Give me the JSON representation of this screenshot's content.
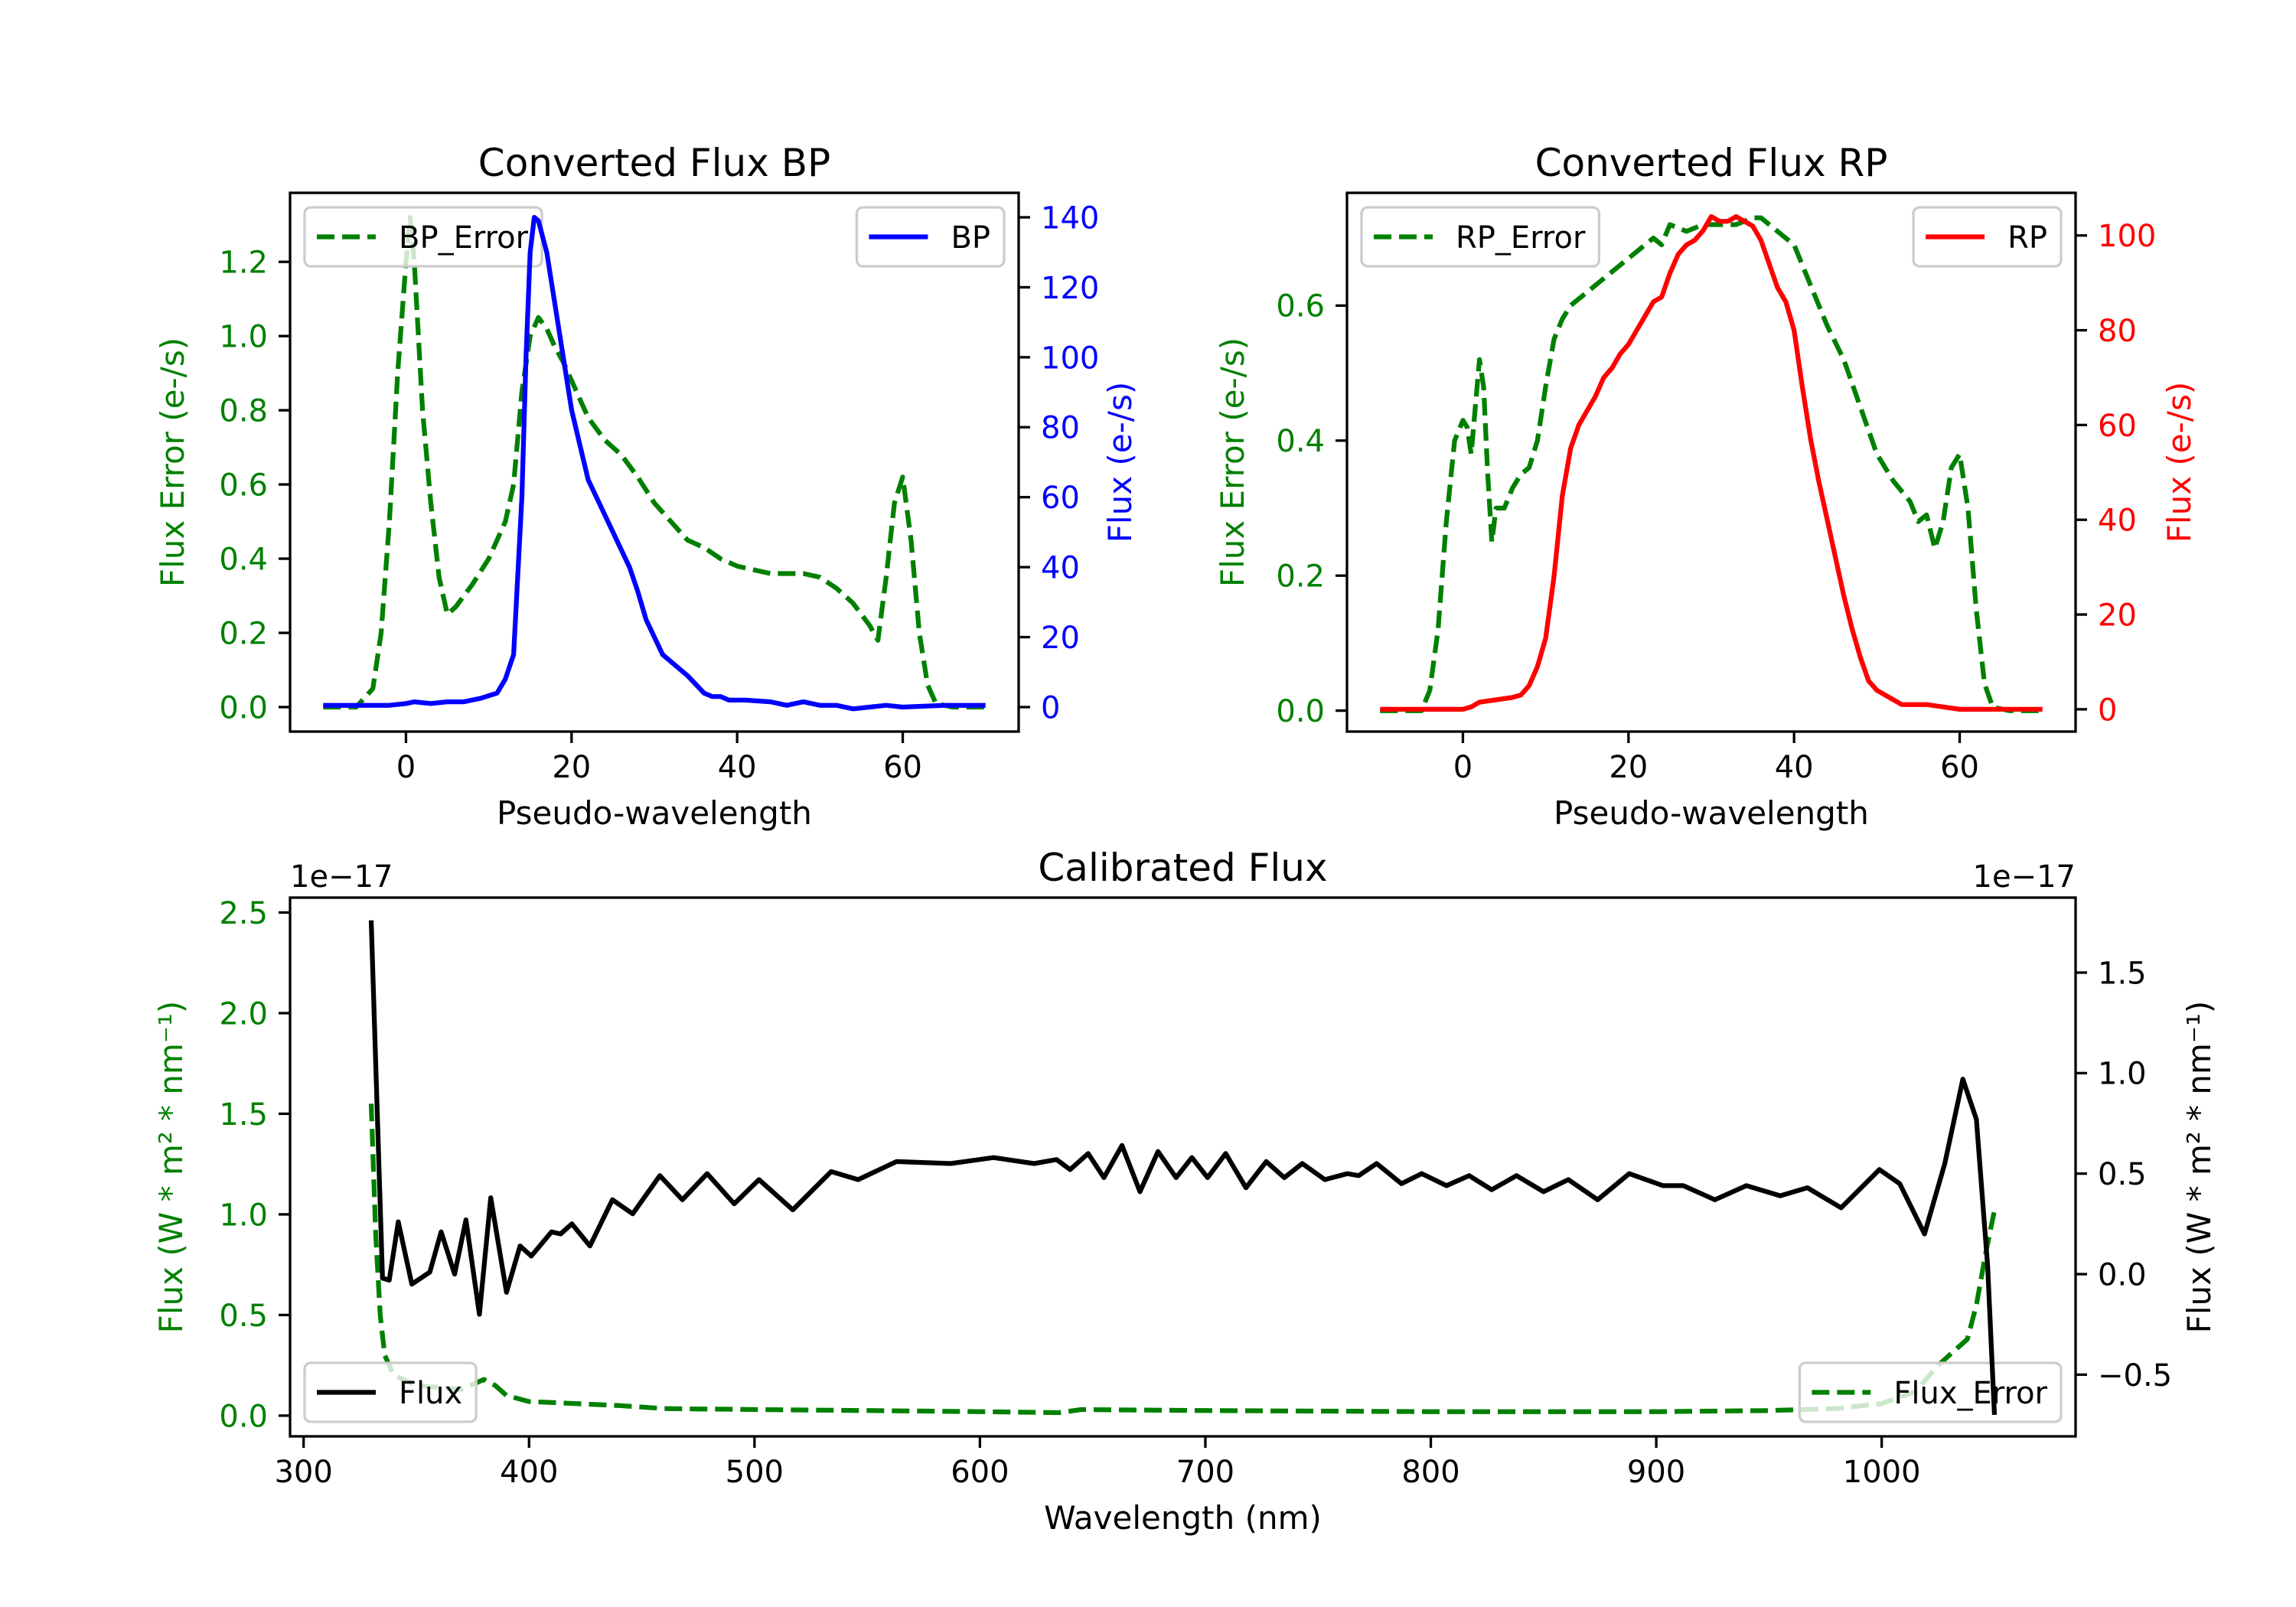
{
  "colors": {
    "error": "#008000",
    "bp": "#0000ff",
    "rp": "#ff0000",
    "flux": "#000000",
    "legend_edge": "#cccccc"
  },
  "chart_data": [
    {
      "type": "line",
      "title": "Converted Flux BP",
      "xlabel": "Pseudo-wavelength",
      "xlim": [
        -14,
        74
      ],
      "xticks": [
        0,
        20,
        40,
        60
      ],
      "y_left": {
        "label": "Flux Error (e-/s)",
        "color": "#008000",
        "lim": [
          -0.066,
          1.386
        ],
        "ticks": [
          0.0,
          0.2,
          0.4,
          0.6,
          0.8,
          1.0,
          1.2
        ],
        "decimals": 1
      },
      "y_right": {
        "label": "Flux (e-/s)",
        "color": "#0000ff",
        "lim": [
          -7,
          147
        ],
        "ticks": [
          0,
          20,
          40,
          60,
          80,
          100,
          120,
          140
        ],
        "decimals": 0
      },
      "series": [
        {
          "name": "BP_Error",
          "axis": "left",
          "color": "#008000",
          "style": "dashed",
          "legend": "upper-left",
          "x": [
            -10,
            -6,
            -4,
            -3,
            -2,
            -1,
            0,
            0.5,
            1,
            2,
            3,
            4,
            5,
            6,
            7,
            8,
            10,
            12,
            13,
            14,
            15,
            16,
            17,
            18,
            19,
            20,
            22,
            24,
            26,
            28,
            30,
            32,
            34,
            36,
            38,
            40,
            44,
            48,
            50,
            52,
            54,
            56,
            57,
            58,
            59,
            60,
            61,
            62,
            63,
            64,
            66,
            70
          ],
          "y": [
            0,
            0,
            0.05,
            0.2,
            0.5,
            0.9,
            1.2,
            1.32,
            1.2,
            0.8,
            0.55,
            0.35,
            0.25,
            0.27,
            0.3,
            0.33,
            0.4,
            0.5,
            0.6,
            0.85,
            1.0,
            1.05,
            1.02,
            0.97,
            0.93,
            0.88,
            0.78,
            0.72,
            0.68,
            0.62,
            0.55,
            0.5,
            0.45,
            0.43,
            0.4,
            0.38,
            0.36,
            0.36,
            0.35,
            0.32,
            0.28,
            0.22,
            0.18,
            0.35,
            0.55,
            0.62,
            0.45,
            0.2,
            0.06,
            0.01,
            0,
            0
          ]
        },
        {
          "name": "BP",
          "axis": "right",
          "color": "#0000ff",
          "style": "solid",
          "legend": "upper-right",
          "x": [
            -10,
            -5,
            -2,
            0,
            1,
            3,
            5,
            7,
            9,
            11,
            12,
            13,
            14,
            14.5,
            15,
            15.5,
            16,
            17,
            18,
            19,
            20,
            21,
            22,
            23,
            24,
            25,
            26,
            27,
            28,
            29,
            30,
            31,
            32,
            34,
            36,
            37,
            38,
            39,
            41,
            44,
            46,
            48,
            50,
            52,
            54,
            56,
            58,
            60,
            65,
            70
          ],
          "y": [
            0.5,
            0.5,
            0.5,
            1,
            1.5,
            1,
            1.5,
            1.5,
            2.5,
            4,
            8,
            15,
            60,
            100,
            130,
            140,
            139,
            130,
            115,
            100,
            85,
            75,
            65,
            60,
            55,
            50,
            45,
            40,
            33,
            25,
            20,
            15,
            13,
            9,
            4,
            3,
            3,
            2,
            2,
            1.5,
            0.5,
            1.5,
            0.5,
            0.5,
            -0.5,
            0,
            0.5,
            0,
            0.5,
            0.5
          ]
        }
      ]
    },
    {
      "type": "line",
      "title": "Converted Flux RP",
      "xlabel": "Pseudo-wavelength",
      "xlim": [
        -14,
        74
      ],
      "xticks": [
        0,
        20,
        40,
        60
      ],
      "y_left": {
        "label": "Flux Error (e-/s)",
        "color": "#008000",
        "lim": [
          -0.031,
          0.767
        ],
        "ticks": [
          0.0,
          0.2,
          0.4,
          0.6
        ],
        "decimals": 1
      },
      "y_right": {
        "label": "Flux (e-/s)",
        "color": "#ff0000",
        "lim": [
          -4.7,
          109
        ],
        "ticks": [
          0,
          20,
          40,
          60,
          80,
          100
        ],
        "decimals": 0
      },
      "series": [
        {
          "name": "RP_Error",
          "axis": "left",
          "color": "#008000",
          "style": "dashed",
          "legend": "upper-left",
          "x": [
            -10,
            -5,
            -4,
            -3,
            -2,
            -1,
            0,
            0.5,
            1,
            2,
            2.5,
            3,
            3.5,
            4,
            5,
            6,
            7,
            8,
            9,
            10,
            11,
            12,
            13,
            15,
            17,
            19,
            21,
            23,
            24,
            25,
            27,
            29,
            31,
            33,
            35,
            36,
            38,
            40,
            41,
            42,
            44,
            46,
            48,
            50,
            52,
            54,
            55,
            56,
            57,
            58,
            59,
            60,
            61,
            62,
            63,
            64,
            66,
            70
          ],
          "y": [
            0,
            0,
            0.03,
            0.12,
            0.28,
            0.4,
            0.43,
            0.42,
            0.38,
            0.52,
            0.48,
            0.35,
            0.25,
            0.3,
            0.3,
            0.33,
            0.35,
            0.36,
            0.4,
            0.48,
            0.55,
            0.58,
            0.6,
            0.62,
            0.64,
            0.66,
            0.68,
            0.7,
            0.69,
            0.72,
            0.71,
            0.72,
            0.72,
            0.72,
            0.73,
            0.73,
            0.71,
            0.69,
            0.66,
            0.63,
            0.57,
            0.52,
            0.45,
            0.38,
            0.34,
            0.31,
            0.28,
            0.29,
            0.24,
            0.28,
            0.36,
            0.38,
            0.3,
            0.15,
            0.04,
            0.005,
            0,
            0
          ]
        },
        {
          "name": "RP",
          "axis": "right",
          "color": "#ff0000",
          "style": "solid",
          "legend": "upper-right",
          "x": [
            -10,
            -2,
            0,
            1,
            2,
            4,
            6,
            7,
            8,
            9,
            10,
            11,
            12,
            13,
            14,
            15,
            16,
            17,
            18,
            19,
            20,
            21,
            22,
            23,
            24,
            25,
            26,
            27,
            28,
            29,
            30,
            31,
            32,
            33,
            34,
            35,
            36,
            37,
            38,
            39,
            40,
            41,
            42,
            43,
            44,
            45,
            46,
            47,
            48,
            49,
            50,
            52,
            53,
            56,
            58,
            60,
            70
          ],
          "y": [
            0,
            0,
            0,
            0.5,
            1.5,
            2,
            2.5,
            3,
            5,
            9,
            15,
            28,
            45,
            55,
            60,
            63,
            66,
            70,
            72,
            75,
            77,
            80,
            83,
            86,
            87,
            92,
            96,
            98,
            99,
            101,
            104,
            103,
            103,
            104,
            103,
            102,
            99,
            94,
            89,
            86,
            80,
            68,
            57,
            48,
            40,
            32,
            24,
            17,
            11,
            6,
            4,
            2,
            1,
            1,
            0.5,
            0,
            0
          ]
        }
      ]
    },
    {
      "type": "line",
      "title": "Calibrated Flux",
      "xlabel": "Wavelength (nm)",
      "xlim": [
        294,
        1086
      ],
      "xticks": [
        300,
        400,
        500,
        600,
        700,
        800,
        900,
        1000
      ],
      "y_left": {
        "label": "Flux (W * m² * nm⁻¹)",
        "color": "#008000",
        "lim": [
          -0.103,
          2.574
        ],
        "ticks": [
          0.0,
          0.5,
          1.0,
          1.5,
          2.0,
          2.5
        ],
        "decimals": 1,
        "offset_text": "1e−17"
      },
      "y_right": {
        "label": "Flux (W * m² * nm⁻¹)",
        "color": "#000000",
        "lim": [
          -0.807,
          1.873
        ],
        "ticks": [
          -0.5,
          0.0,
          0.5,
          1.0,
          1.5
        ],
        "decimals": 1,
        "offset_text": "1e−17"
      },
      "series": [
        {
          "name": "Flux_Error",
          "axis": "left",
          "color": "#008000",
          "style": "dashed",
          "legend": "lower-right",
          "x": [
            330,
            332,
            334,
            336,
            340,
            350,
            370,
            380,
            385,
            390,
            400,
            420,
            440,
            460,
            500,
            550,
            600,
            635,
            645,
            700,
            800,
            900,
            950,
            980,
            1000,
            1015,
            1025,
            1032,
            1038,
            1042,
            1046,
            1050
          ],
          "y": [
            1.55,
            0.9,
            0.5,
            0.3,
            0.2,
            0.15,
            0.13,
            0.18,
            0.15,
            0.1,
            0.07,
            0.06,
            0.05,
            0.035,
            0.03,
            0.025,
            0.02,
            0.015,
            0.03,
            0.025,
            0.02,
            0.02,
            0.025,
            0.035,
            0.06,
            0.12,
            0.25,
            0.32,
            0.38,
            0.55,
            0.8,
            1.02
          ]
        },
        {
          "name": "Flux",
          "axis": "right",
          "color": "#000000",
          "style": "solid",
          "legend": "lower-left",
          "x": [
            330,
            335,
            338,
            342,
            348,
            356,
            361,
            367,
            372,
            378,
            383,
            390,
            396,
            401,
            410,
            414,
            419,
            427,
            437,
            446,
            458,
            468,
            479,
            491,
            502,
            517,
            534,
            546,
            563,
            587,
            606,
            624,
            634,
            640,
            648,
            655,
            663,
            671,
            679,
            687,
            694,
            701,
            709,
            718,
            727,
            735,
            743,
            753,
            763,
            768,
            776,
            787,
            796,
            807,
            817,
            827,
            838,
            850,
            861,
            874,
            888,
            903,
            912,
            926,
            940,
            955,
            967,
            982,
            999,
            1008,
            1019,
            1028,
            1036,
            1042,
            1047,
            1050
          ],
          "y": [
            1.76,
            -0.02,
            -0.03,
            0.26,
            -0.05,
            0.01,
            0.21,
            0.0,
            0.27,
            -0.2,
            0.38,
            -0.09,
            0.14,
            0.09,
            0.21,
            0.2,
            0.25,
            0.14,
            0.37,
            0.3,
            0.49,
            0.37,
            0.5,
            0.35,
            0.47,
            0.32,
            0.51,
            0.47,
            0.56,
            0.55,
            0.58,
            0.55,
            0.57,
            0.52,
            0.6,
            0.48,
            0.64,
            0.41,
            0.61,
            0.48,
            0.58,
            0.48,
            0.6,
            0.43,
            0.56,
            0.48,
            0.55,
            0.47,
            0.5,
            0.49,
            0.55,
            0.45,
            0.5,
            0.44,
            0.49,
            0.42,
            0.49,
            0.41,
            0.47,
            0.37,
            0.5,
            0.44,
            0.44,
            0.37,
            0.44,
            0.39,
            0.43,
            0.33,
            0.52,
            0.45,
            0.2,
            0.55,
            0.97,
            0.77,
            0.04,
            -0.7
          ]
        }
      ]
    }
  ]
}
